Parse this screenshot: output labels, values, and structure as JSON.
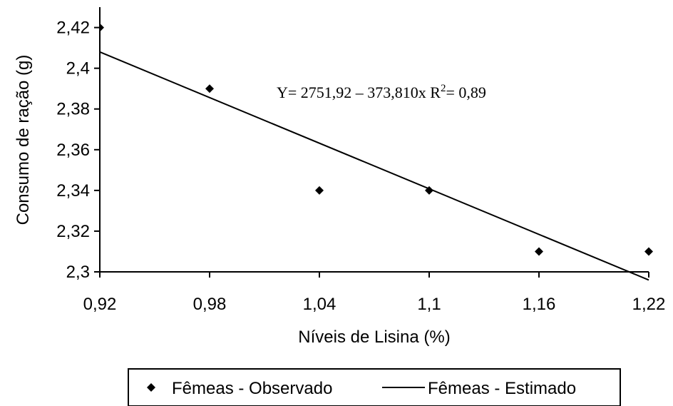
{
  "chart_data": {
    "type": "scatter",
    "title": "",
    "xlabel": "Níveis de Lisina (%)",
    "ylabel": "Consumo de ração (g)",
    "xlim": [
      0.92,
      1.22
    ],
    "ylim": [
      2.3,
      2.43
    ],
    "x_ticks": [
      0.92,
      0.98,
      1.04,
      1.1,
      1.16,
      1.22
    ],
    "x_tick_labels": [
      "0,92",
      "0,98",
      "1,04",
      "1,1",
      "1,16",
      "1,22"
    ],
    "y_ticks": [
      2.3,
      2.32,
      2.34,
      2.36,
      2.38,
      2.4,
      2.42
    ],
    "y_tick_labels": [
      "2,3",
      "2,32",
      "2,34",
      "2,36",
      "2,38",
      "2,4",
      "2,42"
    ],
    "grid": false,
    "legend_position": "bottom",
    "series": [
      {
        "name": "Fêmeas - Observado",
        "kind": "scatter",
        "marker": "diamond",
        "color": "#000000",
        "points": [
          {
            "x": 0.92,
            "y": 2.42
          },
          {
            "x": 0.98,
            "y": 2.39
          },
          {
            "x": 1.04,
            "y": 2.34
          },
          {
            "x": 1.1,
            "y": 2.34
          },
          {
            "x": 1.16,
            "y": 2.31
          },
          {
            "x": 1.22,
            "y": 2.31
          }
        ]
      },
      {
        "name": "Fêmeas - Estimado",
        "kind": "line",
        "color": "#000000",
        "points": [
          {
            "x": 0.92,
            "y": 2.408
          },
          {
            "x": 1.22,
            "y": 2.296
          }
        ]
      }
    ],
    "annotation": {
      "equation_prefix": "Y= 2751,92 – 373,810x R",
      "superscript": "2",
      "equation_suffix": "= 0,89"
    }
  }
}
